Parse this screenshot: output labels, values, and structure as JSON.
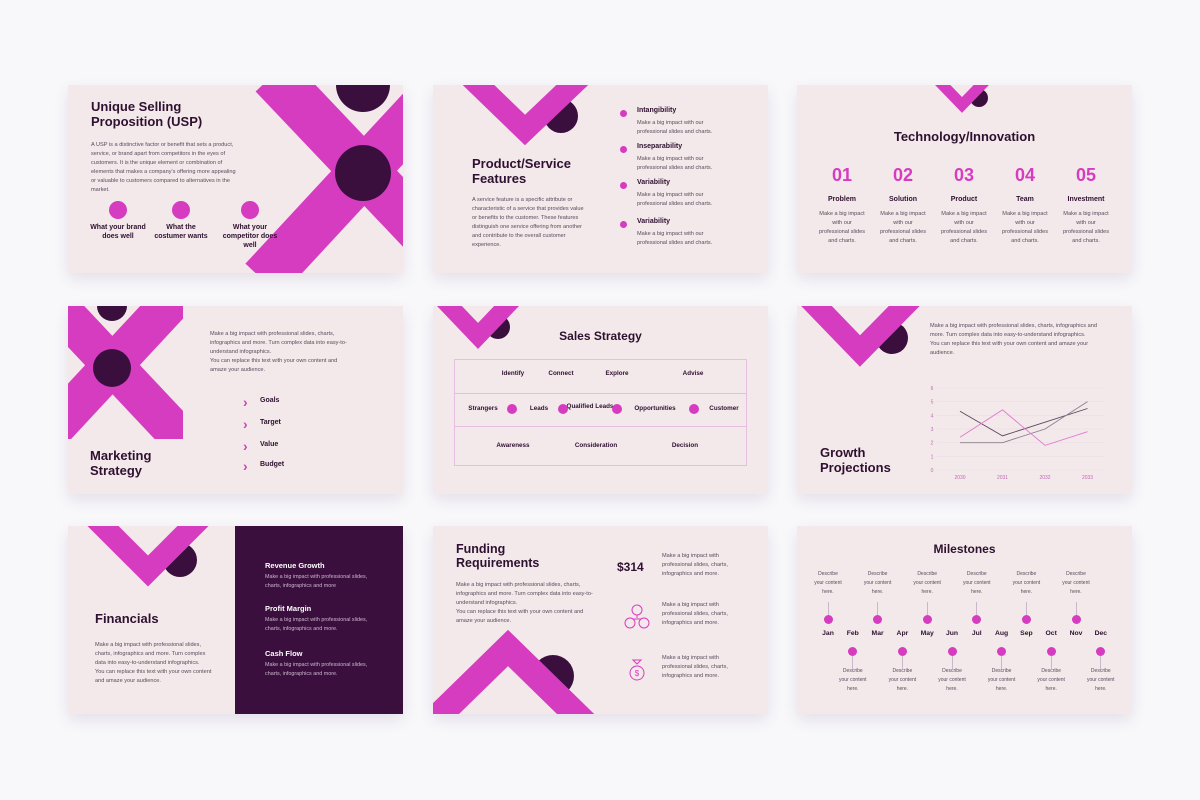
{
  "colors": {
    "accent": "#d63cbf",
    "dark": "#3a0f3d",
    "slide_bg": "#f3e9ea",
    "page_bg": "#f8f8fb"
  },
  "usp": {
    "title_line1": "Unique Selling",
    "title_line2": "Proposition (USP)",
    "body": "A USP is a distinctive factor or benefit that sets a product, service, or brand apart from competitors in the eyes of customers. It is the unique element or combination of elements that makes a company's offering more appealing or valuable to customers compared to alternatives in the market.",
    "points": [
      "What your brand does well",
      "What the costumer wants",
      "What your competitor does well"
    ]
  },
  "features": {
    "title_line1": "Product/Service",
    "title_line2": "Features",
    "body": "A service feature is a specific attribute or characteristic of a service that provides value or benefits to the customer. These features distinguish one service offering from another and contribute to the overall customer experience.",
    "items": [
      {
        "title": "Intangibility",
        "text": "Make a big impact with our professional slides and charts."
      },
      {
        "title": "Inseparability",
        "text": "Make a big impact with our professional slides and charts."
      },
      {
        "title": "Variability",
        "text": "Make a big impact with our professional slides and charts."
      },
      {
        "title": "Variability",
        "text": "Make a big impact with our professional slides and charts."
      }
    ]
  },
  "tech": {
    "title": "Technology/Innovation",
    "columns": [
      {
        "num": "01",
        "title": "Problem",
        "text": "Make a big impact with our professional slides and charts."
      },
      {
        "num": "02",
        "title": "Solution",
        "text": "Make a big impact with our professional slides and charts."
      },
      {
        "num": "03",
        "title": "Product",
        "text": "Make a big impact with our professional slides and charts."
      },
      {
        "num": "04",
        "title": "Team",
        "text": "Make a big impact with our professional slides and charts."
      },
      {
        "num": "05",
        "title": "Investment",
        "text": "Make a big impact with our professional slides and charts."
      }
    ]
  },
  "marketing": {
    "title_line1": "Marketing",
    "title_line2": "Strategy",
    "body1": "Make a big impact with professional slides, charts, infographics and more. Turn complex data into easy-to-understand infographics.",
    "body2": "You can replace this text with your own content and amaze your audience.",
    "items": [
      "Goals",
      "Target",
      "Value",
      "Budget"
    ]
  },
  "sales": {
    "title": "Sales Strategy",
    "row1": [
      "Identify",
      "Connect",
      "Explore",
      "Advise"
    ],
    "row2": [
      "Strangers",
      "Leads",
      "Qualified Leads",
      "Opportunities",
      "Customer"
    ],
    "row3": [
      "Awareness",
      "Consideration",
      "Decision"
    ]
  },
  "growth": {
    "title_line1": "Growth",
    "title_line2": "Projections",
    "body1": "Make a big impact with professional slides, charts, infographics and more. Turn complex data into easy-to-understand infographics.",
    "body2": "You can replace this text with your own content and amaze your audience."
  },
  "chart_data": {
    "type": "line",
    "x": [
      "2030",
      "2031",
      "2032",
      "2033"
    ],
    "ylim": [
      0,
      6
    ],
    "yticks": [
      0,
      1,
      2,
      3,
      4,
      5,
      6
    ],
    "grid": true,
    "series": [
      {
        "values": [
          4.3,
          2.5,
          3.5,
          4.5
        ],
        "color": "#5a4a5c"
      },
      {
        "values": [
          2,
          2,
          3,
          5
        ],
        "color": "#8a7f8c"
      },
      {
        "values": [
          2.4,
          4.4,
          1.8,
          2.8
        ],
        "color": "#e07ad2"
      }
    ]
  },
  "financials": {
    "title": "Financials",
    "body1": "Make a big impact with professional slides, charts, infographics and more. Turn complex data into easy-to-understand infographics.",
    "body2": "You can replace this text with your own content and amaze your audience.",
    "items": [
      {
        "title": "Revenue Growth",
        "text": "Make a big impact with professional slides, charts, infographics and more"
      },
      {
        "title": "Profit Margin",
        "text": "Make a big impact with professional slides, charts, infographics and more."
      },
      {
        "title": "Cash Flow",
        "text": "Make a big impact with professional slides, charts, infographics and more."
      }
    ]
  },
  "funding": {
    "title_line1": "Funding",
    "title_line2": "Requirements",
    "body1": "Make a big impact with professional slides, charts, infographics and more. Turn complex data into easy-to-understand infographics.",
    "body2": "You can replace this text with your own content and amaze your audience.",
    "amount": "$314",
    "items": [
      {
        "icon": "amount",
        "text": "Make a big impact with professional slides, charts, infographics and more."
      },
      {
        "icon": "people-network-icon",
        "text": "Make a big impact with professional slides, charts, infographics and more."
      },
      {
        "icon": "money-bag-icon",
        "text": "Make a big impact with professional slides, charts, infographics and more."
      }
    ]
  },
  "milestones": {
    "title": "Milestones",
    "months": [
      "Jan",
      "Feb",
      "Mar",
      "Apr",
      "May",
      "Jun",
      "Jul",
      "Aug",
      "Sep",
      "Oct",
      "Nov",
      "Dec"
    ],
    "description": "Describe your content here."
  }
}
